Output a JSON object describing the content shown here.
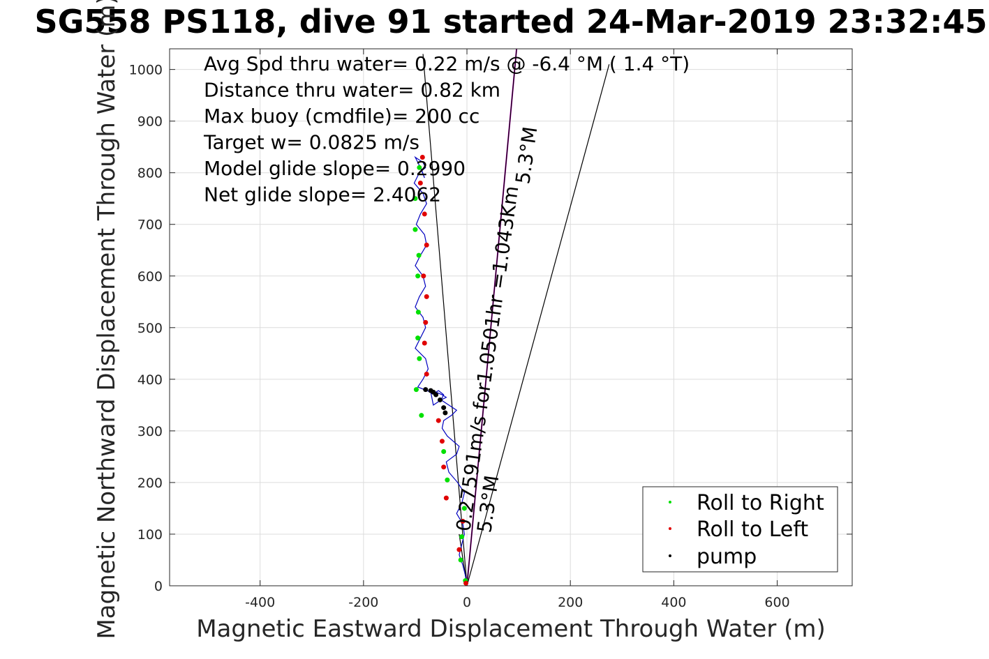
{
  "chart_data": {
    "type": "scatter",
    "title": "SG558 PS118, dive 91 started 24-Mar-2019 23:32:45",
    "xlabel": "Magnetic Eastward Displacement Through Water (m)",
    "ylabel": "Magnetic Northward Displacement Through Water (m)",
    "xlim": [
      -575,
      745
    ],
    "ylim": [
      0,
      1040
    ],
    "xticks": [
      -400,
      -200,
      0,
      200,
      400,
      600
    ],
    "yticks": [
      0,
      100,
      200,
      300,
      400,
      500,
      600,
      700,
      800,
      900,
      1000
    ],
    "grid": true,
    "legend_position": "bottom-right",
    "annotations": [
      "Avg Spd thru water=  0.22 m/s @  -6.4 °M (  1.4 °T)",
      "Distance thru water=  0.82 km",
      "Max buoy (cmdfile)= 200 cc",
      "Target w= 0.0825 m/s",
      "Model glide slope= 0.2990",
      "Net glide slope= 2.4062"
    ],
    "line_labels": {
      "speed_label": "0.27591m/s for1.0501hr =1.043Km",
      "heading_label_1": "5.3°M",
      "heading_label_2": "5.3°M"
    },
    "series": [
      {
        "name": "Roll to Right",
        "color": "#00e000",
        "marker": "dot"
      },
      {
        "name": "Roll to Left",
        "color": "#e00000",
        "marker": "dot"
      },
      {
        "name": "pump",
        "color": "#000000",
        "marker": "dot"
      }
    ],
    "track": {
      "color": "#0000c0",
      "x": [
        0,
        -3,
        -8,
        -15,
        -10,
        -5,
        -8,
        -20,
        -10,
        -5,
        -18,
        -35,
        -40,
        -20,
        -15,
        -38,
        -48,
        -45,
        -30,
        -20,
        -35,
        -50,
        -40,
        -48,
        -60,
        -55,
        -45,
        -50,
        -65,
        -70,
        -95,
        -85,
        -75,
        -80,
        -100,
        -90,
        -80,
        -85,
        -100,
        -92,
        -80,
        -85,
        -100,
        -90,
        -78,
        -82,
        -98,
        -90,
        -78,
        -85,
        -102,
        -92,
        -80,
        -85,
        -100,
        -90,
        -82,
        -90
      ],
      "y": [
        0,
        20,
        40,
        60,
        80,
        100,
        120,
        140,
        160,
        180,
        200,
        220,
        240,
        255,
        270,
        290,
        305,
        320,
        330,
        340,
        350,
        360,
        365,
        370,
        375,
        378,
        370,
        360,
        350,
        375,
        385,
        400,
        420,
        440,
        460,
        480,
        500,
        520,
        540,
        560,
        580,
        600,
        620,
        640,
        660,
        680,
        700,
        720,
        740,
        760,
        780,
        800,
        810,
        820,
        830,
        810,
        790,
        812
      ]
    },
    "roll_right_points": {
      "x": [
        -3,
        -12,
        -10,
        -5,
        -38,
        -45,
        -88,
        -98,
        -92,
        -95,
        -94,
        -95,
        -93,
        -100,
        -100,
        -92
      ],
      "y": [
        10,
        50,
        95,
        150,
        205,
        260,
        330,
        380,
        440,
        480,
        530,
        600,
        640,
        690,
        750,
        810
      ]
    },
    "roll_left_points": {
      "x": [
        -2,
        -15,
        -8,
        -40,
        -45,
        -48,
        -55,
        -78,
        -82,
        -80,
        -78,
        -84,
        -78,
        -82,
        -90,
        -86
      ],
      "y": [
        5,
        70,
        125,
        170,
        230,
        280,
        320,
        410,
        470,
        510,
        560,
        600,
        660,
        720,
        780,
        830
      ]
    },
    "pump_points": {
      "x": [
        -65,
        -60,
        -52,
        -45,
        -42,
        -70,
        -80
      ],
      "y": [
        375,
        370,
        360,
        345,
        335,
        378,
        380
      ]
    },
    "reference_lines": [
      {
        "x": [
          0,
          96
        ],
        "y": [
          0,
          1040
        ],
        "color": "#cc00cc",
        "style": "solid"
      },
      {
        "x": [
          0,
          96
        ],
        "y": [
          0,
          1040
        ],
        "color": "#000000",
        "style": "thin"
      },
      {
        "x": [
          0,
          -85
        ],
        "y": [
          0,
          1030
        ],
        "color": "#000000",
        "style": "thin"
      },
      {
        "x": [
          0,
          275
        ],
        "y": [
          0,
          1010
        ],
        "color": "#000000",
        "style": "thin"
      },
      {
        "x": [
          -15,
          0
        ],
        "y": [
          100,
          0
        ],
        "color": "#000000",
        "style": "thin"
      }
    ]
  }
}
